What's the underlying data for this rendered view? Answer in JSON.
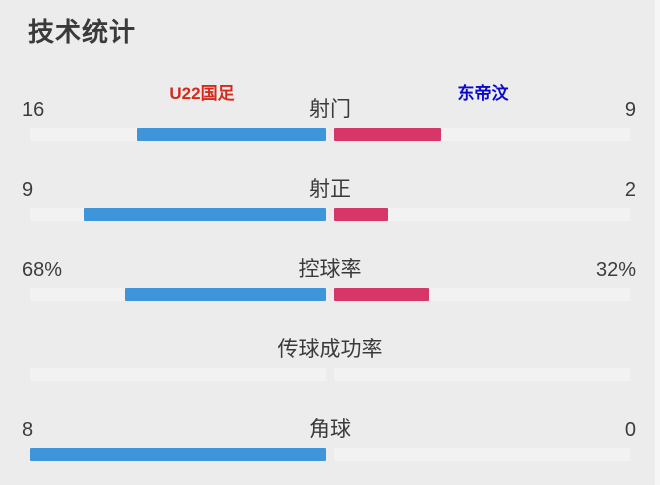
{
  "title": "技术统计",
  "teams": {
    "home": {
      "name": "U22国足",
      "label_color": "#d8281a",
      "bar_color": "#3e95da"
    },
    "away": {
      "name": "东帝汶",
      "label_color": "#0a0acc",
      "bar_color": "#d63768"
    }
  },
  "stats": {
    "rows": [
      {
        "label": "射门",
        "home": 16,
        "away": 9,
        "home_display": "16",
        "away_display": "9"
      },
      {
        "label": "射正",
        "home": 9,
        "away": 2,
        "home_display": "9",
        "away_display": "2"
      },
      {
        "label": "控球率",
        "home": 68,
        "away": 32,
        "home_display": "68%",
        "away_display": "32%"
      },
      {
        "label": "传球成功率",
        "home": null,
        "away": null,
        "home_display": "",
        "away_display": ""
      },
      {
        "label": "角球",
        "home": 8,
        "away": 0,
        "home_display": "8",
        "away_display": "0"
      }
    ]
  },
  "chart_data": {
    "type": "bar",
    "subtype": "opposed-horizontal-comparison",
    "title": "技术统计",
    "categories": [
      "射门",
      "射正",
      "控球率",
      "传球成功率",
      "角球"
    ],
    "series": [
      {
        "name": "U22国足",
        "color": "#3e95da",
        "values": [
          16,
          9,
          68,
          null,
          8
        ],
        "display": [
          "16",
          "9",
          "68%",
          "",
          "8"
        ]
      },
      {
        "name": "东帝汶",
        "color": "#d63768",
        "values": [
          9,
          2,
          32,
          null,
          0
        ],
        "display": [
          "9",
          "2",
          "32%",
          "",
          "0"
        ]
      }
    ],
    "legend_position": "top",
    "layout_hint": "bars meet at row center; each bar length is proportional to value/(home+away)"
  }
}
